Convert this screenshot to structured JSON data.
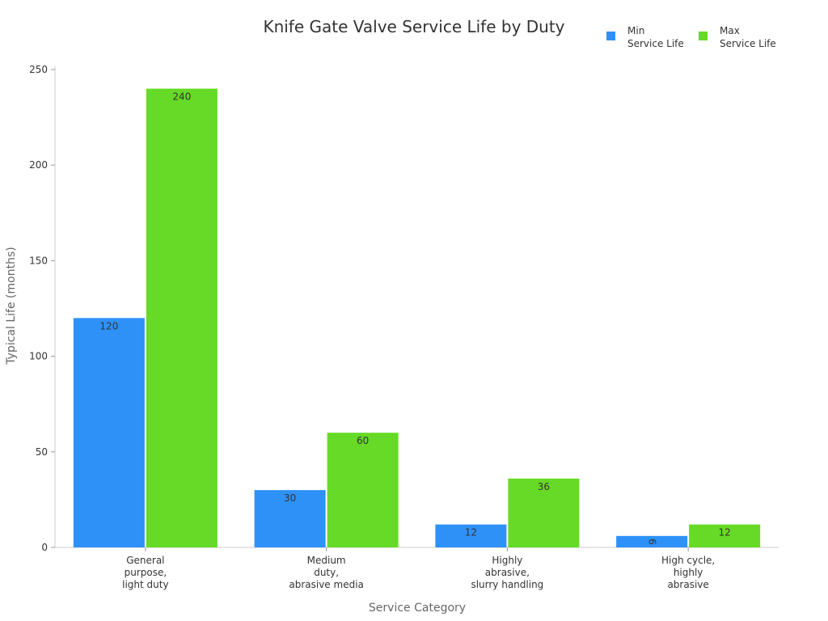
{
  "chart_data": {
    "type": "bar",
    "title": "Knife Gate Valve Service Life by Duty",
    "xlabel": "Service Category",
    "ylabel": "Typical Life (months)",
    "ylim": [
      0,
      250
    ],
    "yticks": [
      0,
      50,
      100,
      150,
      200,
      250
    ],
    "grid": false,
    "legend_position": "top-right",
    "categories": [
      [
        "General",
        "purpose,",
        "light duty"
      ],
      [
        "Medium",
        "duty,",
        "abrasive media"
      ],
      [
        "Highly",
        "abrasive,",
        "slurry handling"
      ],
      [
        "High cycle,",
        "highly",
        "abrasive"
      ]
    ],
    "series": [
      {
        "name": [
          "Min",
          "Service Life"
        ],
        "color": "#2e91f8",
        "values": [
          120,
          30,
          12,
          6
        ]
      },
      {
        "name": [
          "Max",
          "Service Life"
        ],
        "color": "#66da26",
        "values": [
          240,
          60,
          36,
          12
        ]
      }
    ]
  }
}
